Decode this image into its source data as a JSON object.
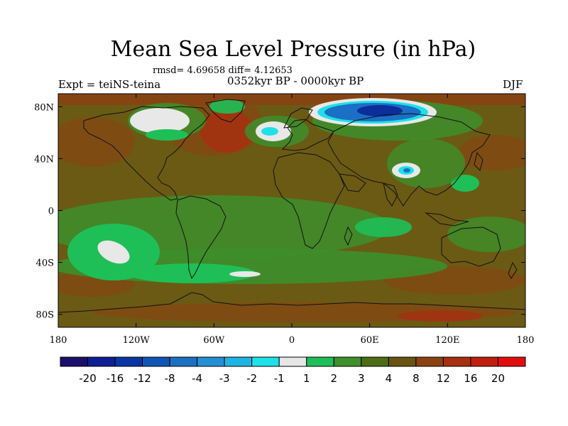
{
  "title": "Mean Sea Level Pressure (in hPa)",
  "stats": "rmsd= 4.69658 diff= 4.12653",
  "left_label": "Expt = teiNS-teina",
  "center_label": "0352kyr BP - 0000kyr BP",
  "right_label": "DJF",
  "x_ticks": [
    "180",
    "120W",
    "60W",
    "0",
    "60E",
    "120E",
    "180"
  ],
  "y_ticks": [
    "80N",
    "40N",
    "0",
    "40S",
    "80S"
  ],
  "y_tick_values": [
    80,
    40,
    0,
    -40,
    -80
  ],
  "colorbar": {
    "levels": [
      "-20",
      "-16",
      "-12",
      "-8",
      "-4",
      "-3",
      "-2",
      "-1",
      "1",
      "2",
      "3",
      "4",
      "8",
      "12",
      "16",
      "20"
    ],
    "colors": [
      "#1b0f6e",
      "#0f1f96",
      "#0a35a5",
      "#0f56b4",
      "#1b70c4",
      "#2390d4",
      "#20b4e4",
      "#1ee0e8",
      "#e6e6e6",
      "#1fbe58",
      "#3f8f2a",
      "#4d6d15",
      "#6a5210",
      "#8a4212",
      "#a63010",
      "#c21e0e",
      "#e20e0e"
    ]
  },
  "map_colors": {
    "base": "#6b5a14",
    "green1": "#3d8f2b",
    "green2": "#1fbf57",
    "white": "#e8e8e8",
    "cyan": "#1ee0e8",
    "blue": "#1b6fc4",
    "darkblue": "#0d2d9a",
    "brown": "#8a4212",
    "red": "#c21e0e",
    "coast": "#111111"
  }
}
